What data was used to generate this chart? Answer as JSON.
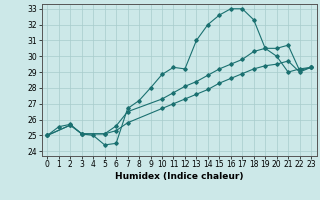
{
  "title": "",
  "xlabel": "Humidex (Indice chaleur)",
  "bg_color": "#cce8e8",
  "line_color": "#1a7070",
  "xlim": [
    -0.5,
    23.5
  ],
  "ylim": [
    23.7,
    33.3
  ],
  "xticks": [
    0,
    1,
    2,
    3,
    4,
    5,
    6,
    7,
    8,
    9,
    10,
    11,
    12,
    13,
    14,
    15,
    16,
    17,
    18,
    19,
    20,
    21,
    22,
    23
  ],
  "yticks": [
    24,
    25,
    26,
    27,
    28,
    29,
    30,
    31,
    32,
    33
  ],
  "line1_x": [
    0,
    1,
    2,
    3,
    4,
    5,
    6,
    7,
    8,
    9,
    10,
    11,
    12,
    13,
    14,
    15,
    16,
    17,
    18,
    19,
    20,
    21,
    22,
    23
  ],
  "line1_y": [
    25.0,
    25.55,
    25.7,
    25.1,
    25.0,
    24.4,
    24.5,
    26.7,
    27.2,
    28.0,
    28.85,
    29.3,
    29.2,
    31.0,
    32.0,
    32.6,
    33.0,
    33.0,
    32.3,
    30.5,
    30.0,
    29.0,
    29.2,
    29.3
  ],
  "line2_x": [
    0,
    2,
    3,
    5,
    6,
    7,
    10,
    11,
    12,
    13,
    14,
    15,
    16,
    17,
    18,
    19,
    20,
    21,
    22,
    23
  ],
  "line2_y": [
    25.0,
    25.65,
    25.1,
    25.1,
    25.6,
    26.5,
    27.3,
    27.7,
    28.1,
    28.4,
    28.8,
    29.2,
    29.5,
    29.8,
    30.3,
    30.5,
    30.5,
    30.7,
    29.1,
    29.3
  ],
  "line3_x": [
    0,
    2,
    3,
    5,
    6,
    7,
    10,
    11,
    12,
    13,
    14,
    15,
    16,
    17,
    18,
    19,
    20,
    21,
    22,
    23
  ],
  "line3_y": [
    25.0,
    25.65,
    25.1,
    25.1,
    25.3,
    25.8,
    26.7,
    27.0,
    27.3,
    27.6,
    27.9,
    28.3,
    28.6,
    28.9,
    29.2,
    29.4,
    29.5,
    29.7,
    29.0,
    29.3
  ],
  "tick_fontsize": 5.5,
  "xlabel_fontsize": 6.5
}
